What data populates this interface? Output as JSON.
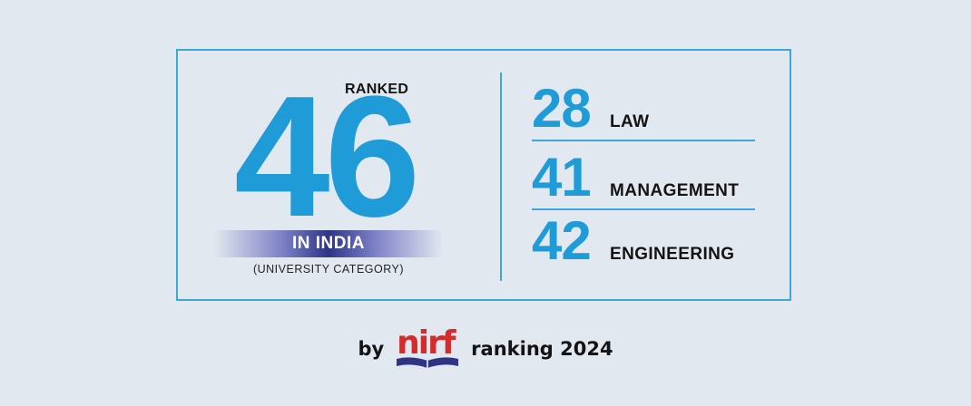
{
  "overall": {
    "ranked_label": "RANKED",
    "rank": "46",
    "region": "IN INDIA",
    "category": "(UNIVERSITY CATEGORY)"
  },
  "categories": [
    {
      "rank": "28",
      "label": "LAW"
    },
    {
      "rank": "41",
      "label": "MANAGEMENT"
    },
    {
      "rank": "42",
      "label": "ENGINEERING"
    }
  ],
  "footer": {
    "by": "by",
    "logo_text": "nirf",
    "ranking": "ranking 2024"
  },
  "colors": {
    "accent_blue": "#1f9bd7",
    "border_blue": "#3fa6d8",
    "logo_red": "#d42b2b",
    "logo_navy": "#2e3584",
    "background": "#e2e8ef"
  }
}
